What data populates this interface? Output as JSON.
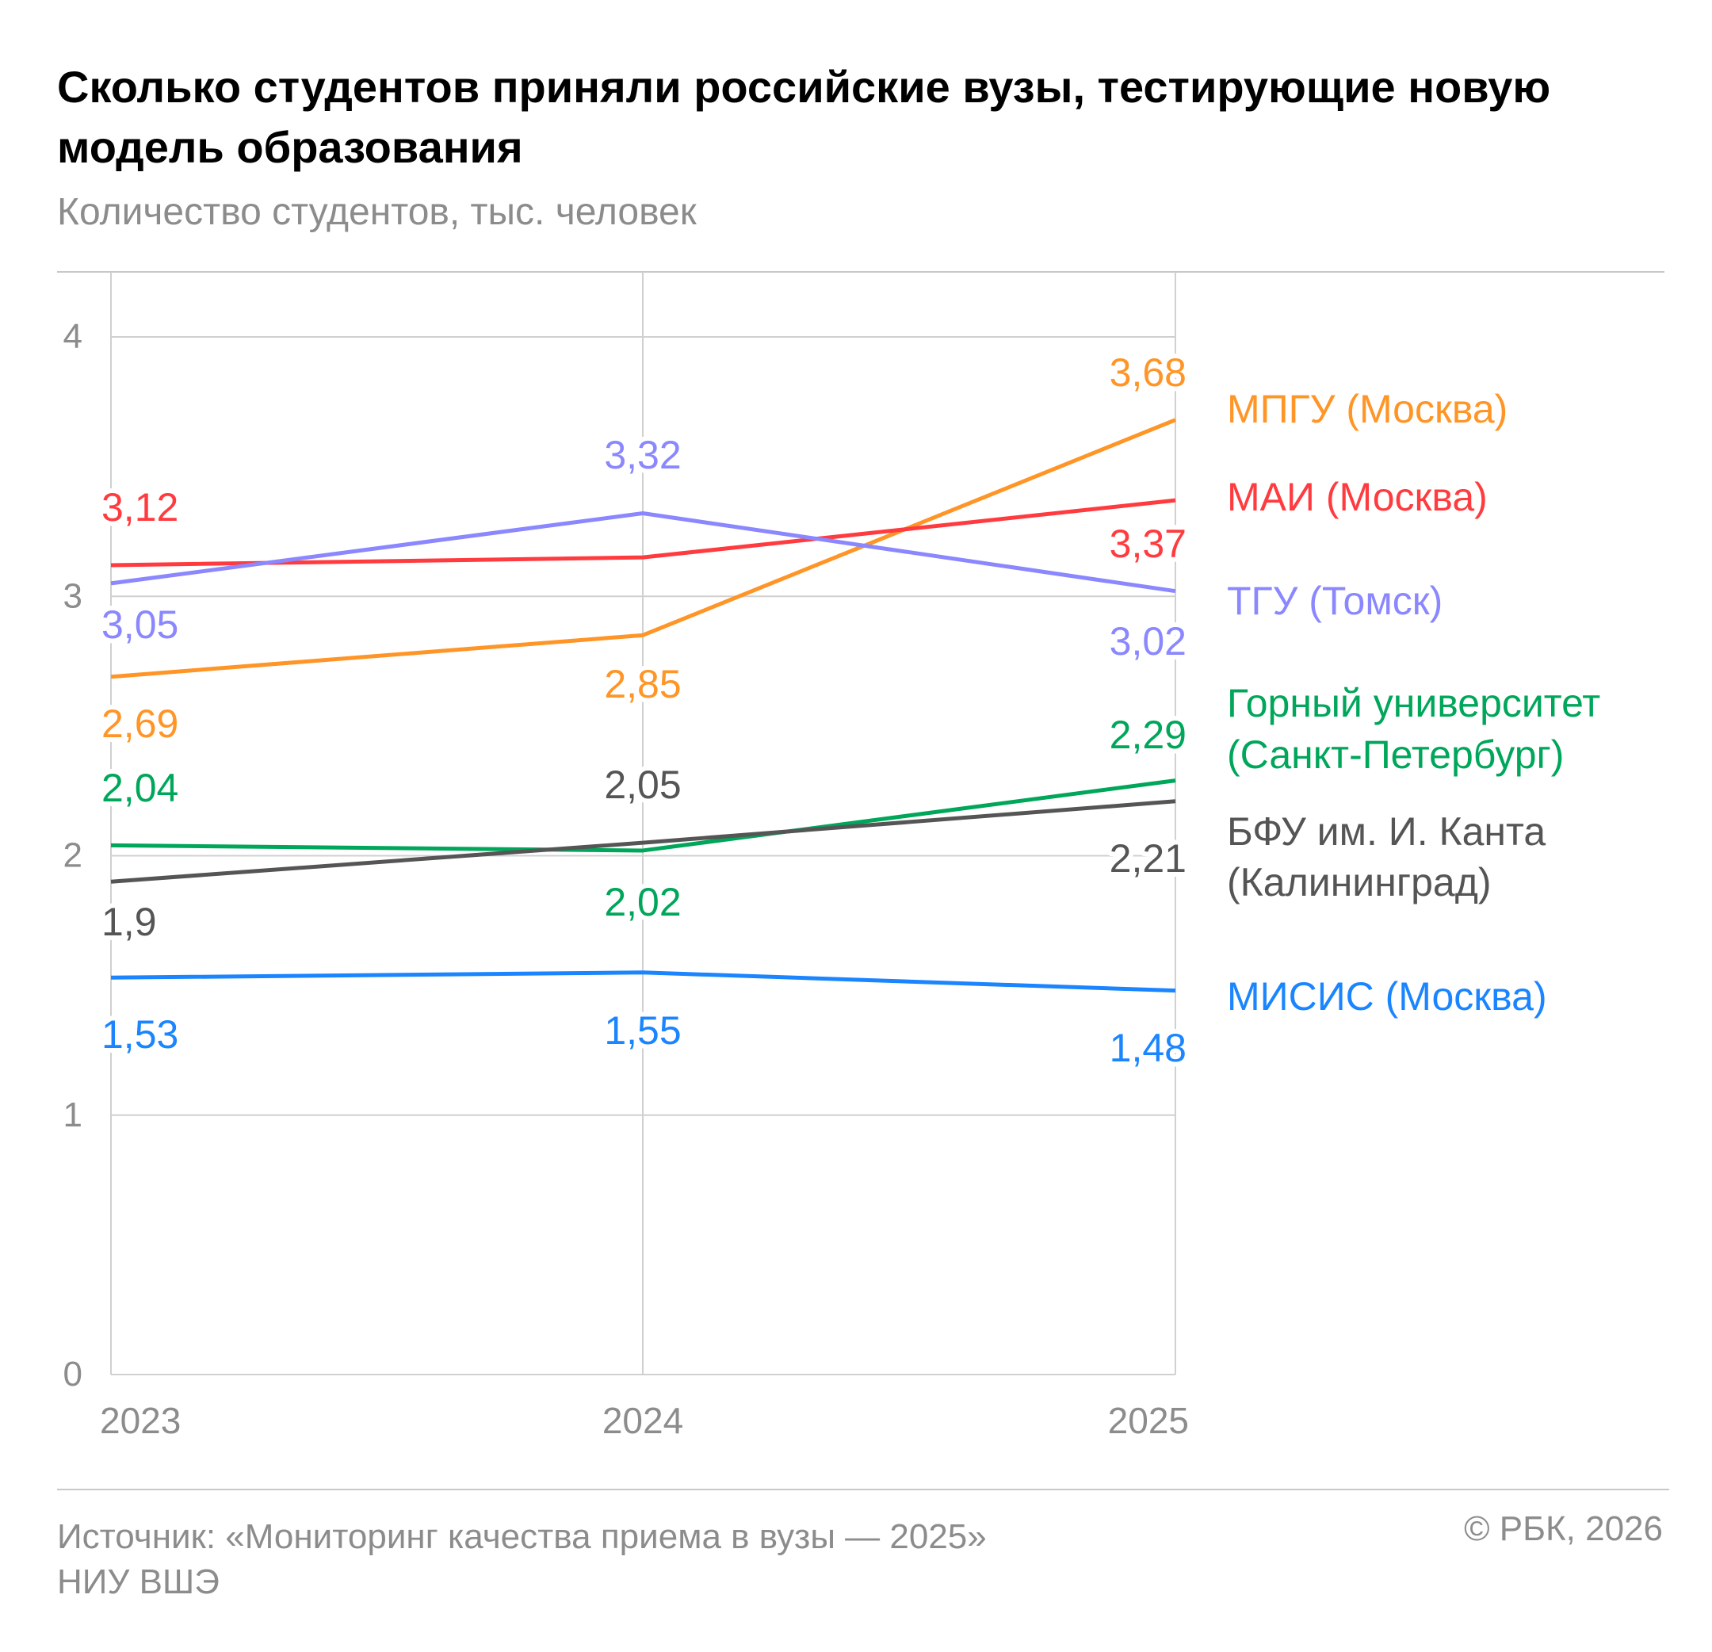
{
  "chart_data": {
    "type": "line",
    "title": "Сколько студентов приняли российские вузы, тестирующие новую модель образования",
    "subtitle": "Количество студентов, тыс. человек",
    "x": [
      "2023",
      "2024",
      "2025"
    ],
    "ylim": [
      0,
      4
    ],
    "yticks": [
      "0",
      "1",
      "2",
      "3",
      "4"
    ],
    "ytick_values": [
      0,
      1,
      2,
      3,
      4
    ],
    "grid": true,
    "legend_placement": "right",
    "series": [
      {
        "name": "МПГУ (Москва)",
        "name_lines": [
          "МПГУ (Москва)"
        ],
        "color": "#ff9526",
        "values": [
          2.69,
          2.85,
          3.68
        ],
        "labels": [
          "2,69",
          "2,85",
          "3,68"
        ]
      },
      {
        "name": "МАИ (Москва)",
        "name_lines": [
          "МАИ (Москва)"
        ],
        "color": "#ff3b3f",
        "values": [
          3.12,
          3.15,
          3.37
        ],
        "labels": [
          "3,12",
          "",
          "3,37"
        ]
      },
      {
        "name": "ТГУ (Томск)",
        "name_lines": [
          "ТГУ (Томск)"
        ],
        "color": "#8a87ff",
        "values": [
          3.05,
          3.32,
          3.02
        ],
        "labels": [
          "3,05",
          "3,32",
          "3,02"
        ]
      },
      {
        "name": "Горный университет (Санкт-Петербург)",
        "name_lines": [
          "Горный университет",
          "(Санкт-Петербург)"
        ],
        "color": "#00a65a",
        "values": [
          2.04,
          2.02,
          2.29
        ],
        "labels": [
          "2,04",
          "2,02",
          "2,29"
        ]
      },
      {
        "name": "БФУ им. И. Канта (Калининград)",
        "name_lines": [
          "БФУ им. И. Канта",
          "(Калининград)"
        ],
        "color": "#555555",
        "values": [
          1.9,
          2.05,
          2.21
        ],
        "labels": [
          "1,9",
          "2,05",
          "2,21"
        ]
      },
      {
        "name": "МИСИС (Москва)",
        "name_lines": [
          "МИСИС (Москва)"
        ],
        "color": "#1a85ff",
        "values": [
          1.53,
          1.55,
          1.48
        ],
        "labels": [
          "1,53",
          "1,55",
          "1,48"
        ]
      }
    ]
  },
  "footer": {
    "source_line1": "Источник: «Мониторинг качества приема в вузы — 2025»",
    "source_line2": "НИУ ВШЭ",
    "copyright": "© РБК, 2026"
  }
}
